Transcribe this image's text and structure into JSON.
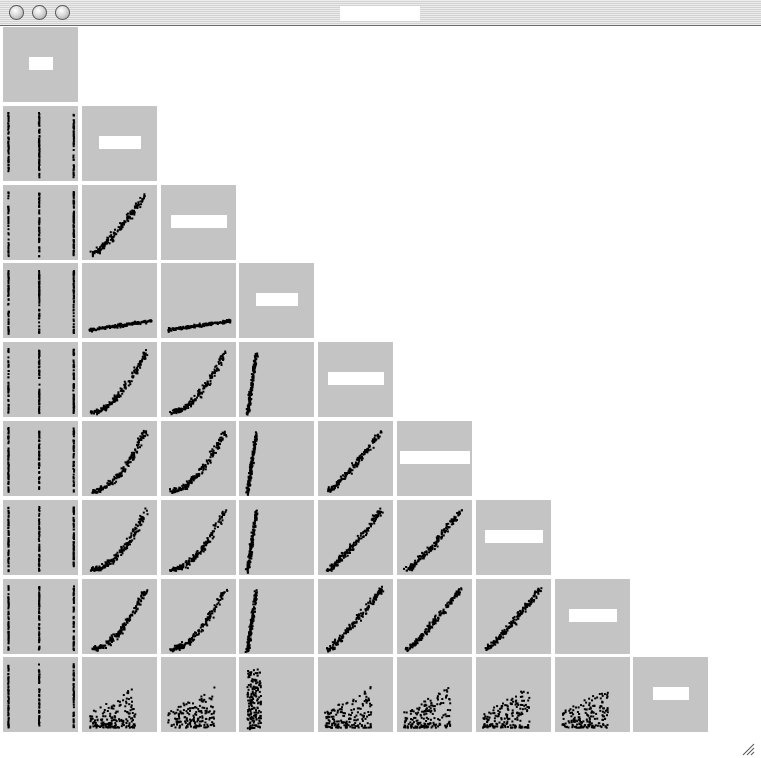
{
  "window": {
    "title": "",
    "controls": [
      {
        "name": "close-button",
        "icon": "close-circle-icon"
      },
      {
        "name": "minimize-button",
        "icon": "minimize-circle-icon"
      },
      {
        "name": "zoom-button",
        "icon": "zoom-circle-icon"
      }
    ]
  },
  "matrix": {
    "variable_count": 9,
    "variables": [
      "",
      "",
      "",
      "",
      "",
      "",
      "",
      "",
      ""
    ],
    "point_color": "#000000",
    "panel_color": "#c4c4c4"
  },
  "resize_grip": {
    "icon": "resize-grip-icon"
  }
}
